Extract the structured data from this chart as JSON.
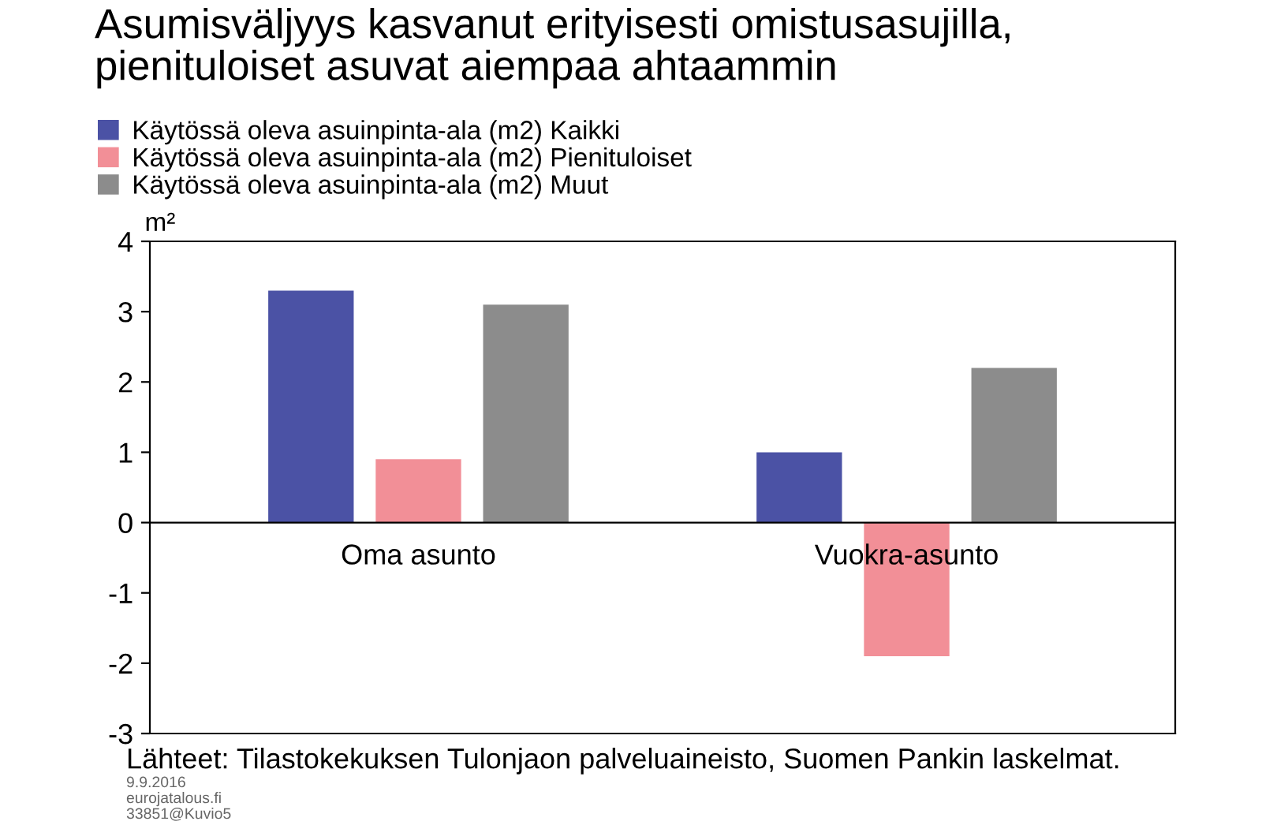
{
  "chart_data": {
    "type": "bar",
    "title": "Asumisväljyys kasvanut erityisesti omistusasujilla,\npienituloiset asuvat aiempaa ahtaammin",
    "ylabel": "m²",
    "categories": [
      "Oma asunto",
      "Vuokra-asunto"
    ],
    "series": [
      {
        "name": "Käytössä oleva asuinpinta-ala (m2) Kaikki",
        "color": "#4b52a5",
        "values": [
          3.3,
          1.0
        ]
      },
      {
        "name": "Käytössä oleva asuinpinta-ala (m2) Pienituloiset",
        "color": "#f28f97",
        "values": [
          0.9,
          -1.9
        ]
      },
      {
        "name": "Käytössä oleva asuinpinta-ala (m2) Muut",
        "color": "#8c8c8c",
        "values": [
          3.1,
          2.2
        ]
      }
    ],
    "ylim": [
      -3,
      4
    ],
    "yticks": [
      -3,
      -2,
      -1,
      0,
      1,
      2,
      3,
      4
    ],
    "grid": false,
    "legend": "top left",
    "annotations": [
      "Lähteet: Tilastokekuksen Tulonjaon palveluaineisto, Suomen Pankin laskelmat.",
      "9.9.2016",
      "eurojatalous.fi",
      "33851@Kuvio5"
    ]
  }
}
